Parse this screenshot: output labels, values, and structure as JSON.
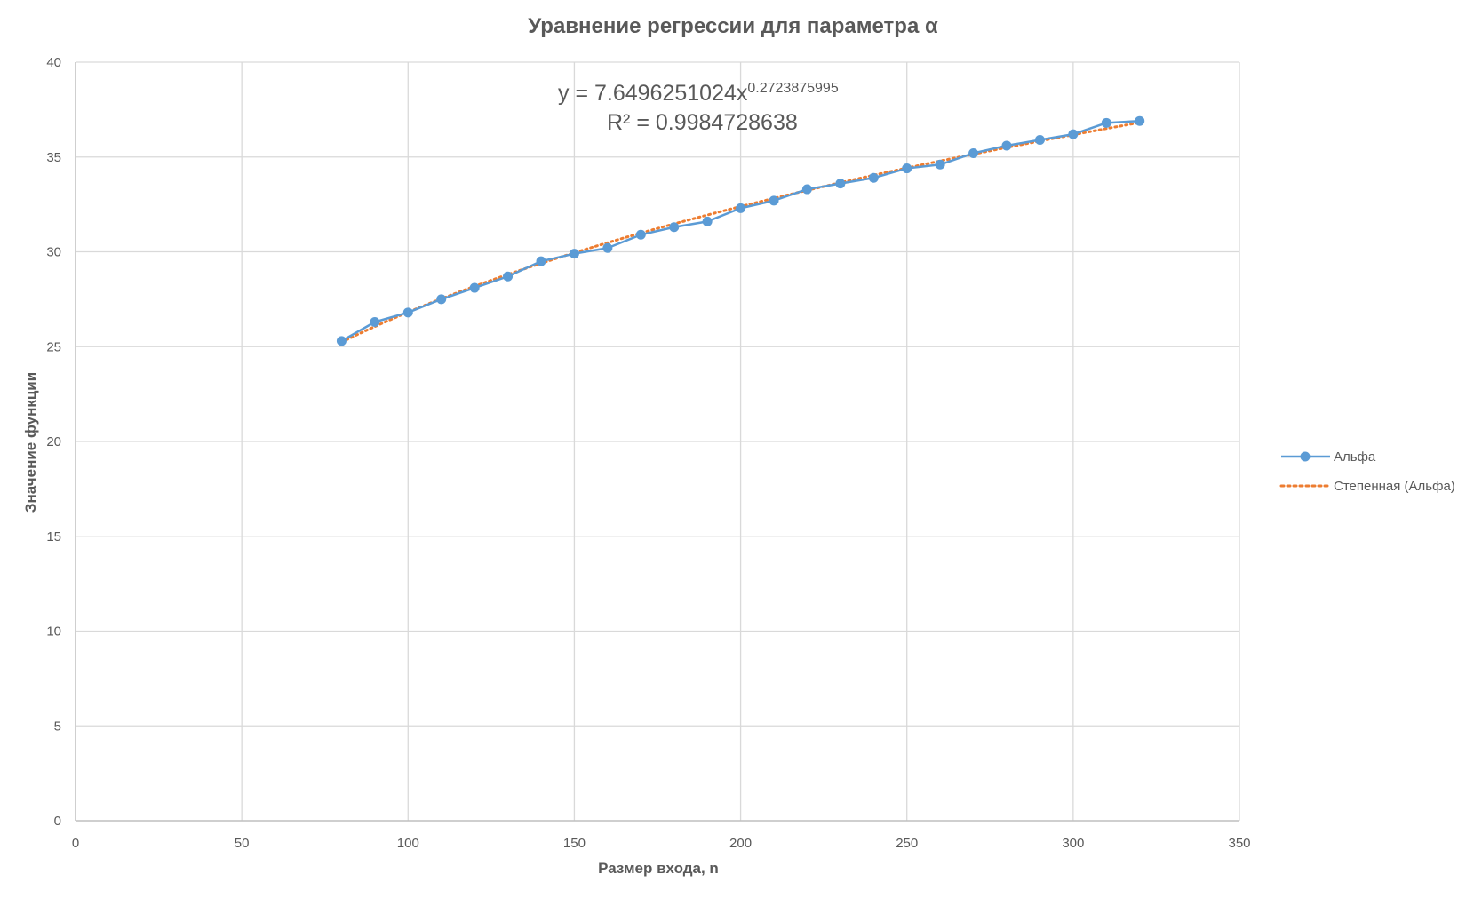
{
  "chart_data": {
    "type": "scatter",
    "title": "Уравнение регрессии для параметра α",
    "xlabel": "Размер входа, n",
    "ylabel": "Значение функции",
    "xlim": [
      0,
      350
    ],
    "ylim": [
      0,
      40
    ],
    "x_ticks": [
      0,
      50,
      100,
      150,
      200,
      250,
      300,
      350
    ],
    "y_ticks": [
      0,
      5,
      10,
      15,
      20,
      25,
      30,
      35,
      40
    ],
    "grid": true,
    "legend_position": "right",
    "series": [
      {
        "name": "Альфа",
        "style": "line-markers",
        "color": "#5B9BD5",
        "x": [
          80,
          90,
          100,
          110,
          120,
          130,
          140,
          150,
          160,
          170,
          180,
          190,
          200,
          210,
          220,
          230,
          240,
          250,
          260,
          270,
          280,
          290,
          300,
          310,
          320
        ],
        "y": [
          25.3,
          26.3,
          26.8,
          27.5,
          28.1,
          28.7,
          29.5,
          29.9,
          30.2,
          30.9,
          31.3,
          31.6,
          32.3,
          32.7,
          33.3,
          33.6,
          33.9,
          34.4,
          34.6,
          35.2,
          35.6,
          35.9,
          36.2,
          36.8,
          36.9
        ]
      },
      {
        "name": "Степенная (Альфа)",
        "style": "dotted-trendline",
        "color": "#ED7D31",
        "coefficient": 7.6496251024,
        "exponent": 0.2723875995
      }
    ],
    "trendline_equation": {
      "prefix": "y = 7.6496251024x",
      "exponent_text": "0.2723875995",
      "r_squared": "R² = 0.9984728638"
    }
  }
}
